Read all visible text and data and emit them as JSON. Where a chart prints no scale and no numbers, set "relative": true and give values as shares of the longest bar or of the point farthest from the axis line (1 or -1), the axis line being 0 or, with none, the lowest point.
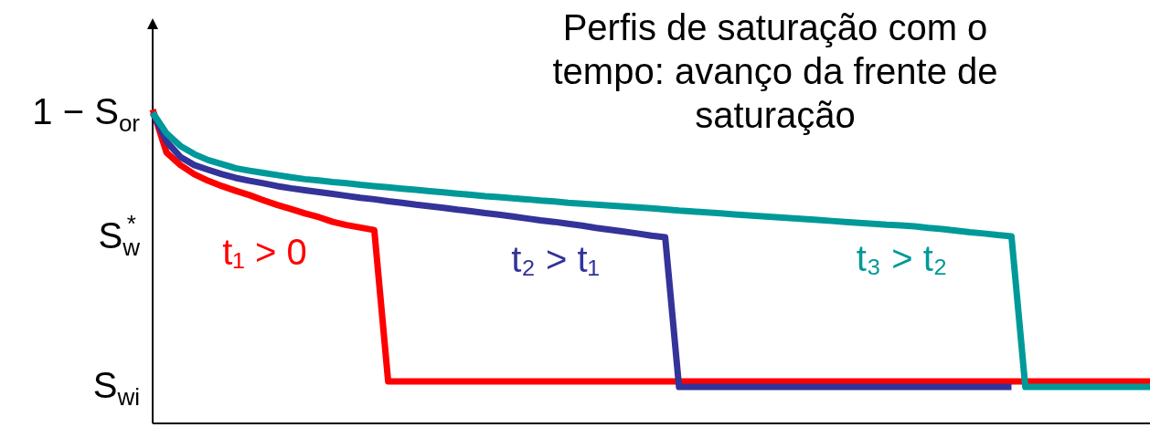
{
  "chart_data": {
    "type": "line",
    "title": "Perfis de saturação com o tempo: avanço da frente de saturação",
    "relative": true,
    "categories": [
      null,
      null,
      null,
      null,
      null,
      null,
      null,
      null,
      null,
      null,
      null,
      null,
      null,
      null,
      null,
      null,
      null,
      null,
      null,
      null,
      null,
      null,
      null,
      null,
      null,
      null,
      null,
      null,
      null,
      null,
      null,
      null,
      null,
      null,
      null,
      null,
      null,
      null,
      null,
      null,
      null,
      null,
      null,
      null,
      null,
      null,
      null,
      null,
      null,
      null,
      null,
      null,
      null,
      null,
      null,
      null,
      null,
      null,
      null,
      null,
      null,
      null,
      null,
      null,
      null,
      null,
      null,
      null,
      null,
      null,
      null,
      null,
      null
    ],
    "annotations": [
      "1 − S$_{or}$",
      "S$_{w}$$^{*}$",
      "S$_{wi}$"
    ],
    "legend": false,
    "marker": "none",
    "line_style": "solid",
    "series": [
      {
        "name": "t₁ > 0",
        "color": "#ff0000",
        "values": [
          1.0,
          0.863,
          0.823,
          0.794,
          0.773,
          0.756,
          0.741,
          0.727,
          0.711,
          0.696,
          0.683,
          0.669,
          0.657,
          0.642,
          0.632,
          0.624,
          0.616,
          0.134,
          0.134,
          0.134,
          0.134,
          0.134,
          0.134,
          0.134,
          0.134,
          0.134,
          0.134,
          0.134,
          0.134,
          0.134,
          0.134,
          0.134,
          0.134,
          0.134,
          0.134,
          0.134,
          0.134,
          0.134,
          0.134,
          0.134,
          0.134,
          0.134,
          0.134,
          0.134,
          0.134,
          0.134,
          0.134,
          0.134,
          0.134,
          0.134,
          0.134,
          0.134,
          0.134,
          0.134,
          0.134,
          0.134,
          0.134,
          0.134,
          0.134,
          0.134,
          0.134,
          0.134,
          0.134,
          0.134,
          0.134,
          0.134,
          0.134,
          0.134,
          0.134,
          0.134,
          0.134,
          0.134,
          0.134
        ]
      },
      {
        "name": "t₂ > t₁",
        "color": "#333399",
        "values": [
          0.99,
          0.898,
          0.849,
          0.823,
          0.808,
          0.794,
          0.782,
          0.773,
          0.765,
          0.756,
          0.749,
          0.743,
          0.737,
          0.731,
          0.725,
          0.719,
          0.714,
          0.708,
          0.703,
          0.697,
          0.692,
          0.687,
          0.681,
          0.676,
          0.67,
          0.665,
          0.659,
          0.653,
          0.647,
          0.642,
          0.636,
          0.63,
          0.623,
          0.617,
          0.611,
          0.605,
          0.598,
          0.593,
          0.116,
          0.116,
          0.116,
          0.116,
          0.116,
          0.116,
          0.116,
          0.116,
          0.116,
          0.116,
          0.116,
          0.116,
          0.116,
          0.116,
          0.116,
          0.116,
          0.116,
          0.116,
          0.116,
          0.116,
          0.116,
          0.116,
          0.116,
          0.116,
          0.116,
          null,
          null,
          null,
          null,
          null,
          null,
          null,
          null,
          null,
          null
        ]
      },
      {
        "name": "t₃ > t₂",
        "color": "#009999",
        "values": [
          0.99,
          0.924,
          0.884,
          0.858,
          0.839,
          0.826,
          0.813,
          0.805,
          0.798,
          0.791,
          0.784,
          0.778,
          0.774,
          0.769,
          0.765,
          0.76,
          0.756,
          0.752,
          0.748,
          0.744,
          0.74,
          0.736,
          0.732,
          0.728,
          0.724,
          0.721,
          0.717,
          0.714,
          0.71,
          0.707,
          0.703,
          0.7,
          0.697,
          0.694,
          0.691,
          0.688,
          0.685,
          0.682,
          0.678,
          0.675,
          0.672,
          0.669,
          0.666,
          0.663,
          0.66,
          0.657,
          0.654,
          0.651,
          0.648,
          0.645,
          0.642,
          0.639,
          0.636,
          0.633,
          0.631,
          0.628,
          0.623,
          0.619,
          0.614,
          0.609,
          0.605,
          0.6,
          0.596,
          0.116,
          0.116,
          0.116,
          0.116,
          0.116,
          0.116,
          0.116,
          0.116,
          0.116,
          0.116
        ]
      }
    ]
  }
}
